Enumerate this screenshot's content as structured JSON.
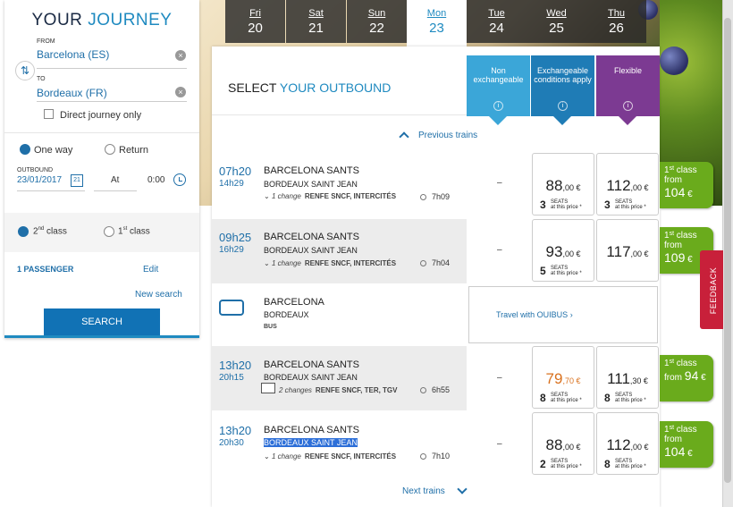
{
  "journey": {
    "title_part1": "YOUR",
    "title_part2": "JOURNEY",
    "from_label": "FROM",
    "from_value": "Barcelona (ES)",
    "to_label": "TO",
    "to_value": "Bordeaux (FR)",
    "direct_label": "Direct journey only",
    "one_way_label": "One way",
    "return_label": "Return",
    "outbound_label": "OUTBOUND",
    "outbound_date": "23/01/2017",
    "cal_day": "21",
    "at_label": "At",
    "time_value": "0:00",
    "class2_label": "2",
    "class2_sup": "nd",
    "class2_word": "class",
    "class1_label": "1",
    "class1_sup": "st",
    "class1_word": "class",
    "passenger_label": "1 PASSENGER",
    "edit_label": "Edit",
    "new_search_label": "New search",
    "search_label": "SEARCH"
  },
  "days": [
    {
      "name": "Fri",
      "num": "20"
    },
    {
      "name": "Sat",
      "num": "21"
    },
    {
      "name": "Sun",
      "num": "22"
    },
    {
      "name": "Mon",
      "num": "23"
    },
    {
      "name": "Tue",
      "num": "24"
    },
    {
      "name": "Wed",
      "num": "25"
    },
    {
      "name": "Thu",
      "num": "26"
    }
  ],
  "main": {
    "title_part1": "SELECT",
    "title_part2": "YOUR OUTBOUND",
    "previous_trains": "Previous trains",
    "next_trains": "Next trains",
    "fares": [
      {
        "label": "Non exchangeable",
        "color": "#3ba6d8"
      },
      {
        "label": "Exchangeable conditions apply",
        "color": "#1f7cb6"
      },
      {
        "label": "Flexible",
        "color": "#7c3a92"
      }
    ],
    "fare_info": "i"
  },
  "trains": [
    {
      "dep": "07h20",
      "arr": "14h29",
      "from": "BARCELONA SANTS",
      "to": "BORDEAUX SAINT JEAN",
      "changes": "1 change",
      "operators": "RENFE SNCF, INTERCITÉS",
      "duration": "7h09",
      "non_exch": "–",
      "p1_int": "88",
      "p1_dec": ",00 €",
      "p1_seats": "3",
      "p2_int": "112",
      "p2_dec": ",00 €",
      "p2_seats": "3"
    },
    {
      "dep": "09h25",
      "arr": "16h29",
      "from": "BARCELONA SANTS",
      "to": "BORDEAUX SAINT JEAN",
      "changes": "1 change",
      "operators": "RENFE SNCF, INTERCITÉS",
      "duration": "7h04",
      "non_exch": "–",
      "p1_int": "93",
      "p1_dec": ",00 €",
      "p1_seats": "5",
      "p2_int": "117",
      "p2_dec": ",00 €"
    },
    {
      "dep": "13h20",
      "arr": "20h15",
      "from": "BARCELONA SANTS",
      "to": "BORDEAUX SAINT JEAN",
      "changes": "2 changes",
      "operators": "RENFE SNCF, TER, TGV",
      "duration": "6h55",
      "non_exch": "–",
      "p1_int": "79",
      "p1_dec": ",70 €",
      "p1_seats": "8",
      "p2_int": "111",
      "p2_dec": ",30 €",
      "p2_seats": "8"
    },
    {
      "dep": "13h20",
      "arr": "20h30",
      "from": "BARCELONA SANTS",
      "to": "BORDEAUX SAINT JEAN",
      "changes": "1 change",
      "operators": "RENFE SNCF, INTERCITÉS",
      "duration": "7h10",
      "non_exch": "–",
      "p1_int": "88",
      "p1_dec": ",00 €",
      "p1_seats": "2",
      "p2_int": "112",
      "p2_dec": ",00 €",
      "p2_seats": "8"
    }
  ],
  "seats_text_line1": "SEATS",
  "seats_text_line2": "at this price *",
  "bus": {
    "from": "BARCELONA",
    "to": "BORDEAUX",
    "type": "BUS",
    "link": "Travel with OUIBUS"
  },
  "promos": [
    {
      "line1": "1",
      "sup": "st",
      "word": "class",
      "from": "from",
      "int": "104",
      "cur": "€"
    },
    {
      "line1": "1",
      "sup": "st",
      "word": "class",
      "from": "from",
      "int": "109",
      "cur": "€"
    },
    {
      "line1": "1",
      "sup": "st",
      "word": "class",
      "from": "from",
      "int": "94",
      "cur": "€"
    },
    {
      "line1": "1",
      "sup": "st",
      "word": "class",
      "from": "from",
      "int": "104",
      "cur": "€"
    }
  ],
  "feedback_label": "FEEDBACK"
}
